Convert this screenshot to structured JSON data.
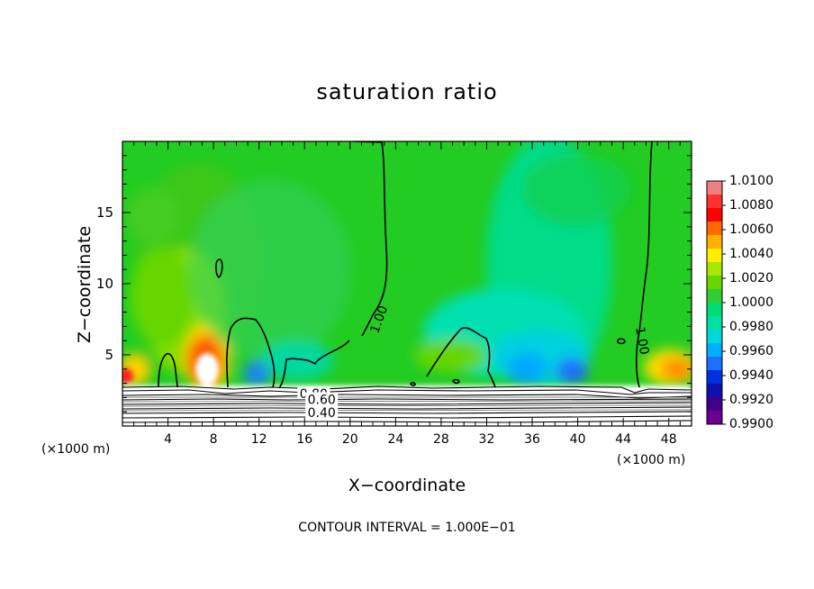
{
  "chart_data": {
    "type": "heatmap",
    "title": "saturation ratio",
    "xlabel": "X−coordinate",
    "ylabel": "Z−coordinate",
    "x_unit": "(×1000 m)",
    "z_unit": "(×1000 m)",
    "xlim": [
      0,
      50
    ],
    "zlim": [
      0,
      20
    ],
    "x_ticks": [
      "4",
      "8",
      "12",
      "16",
      "20",
      "24",
      "28",
      "32",
      "36",
      "40",
      "44",
      "48"
    ],
    "z_ticks": [
      "5",
      "10",
      "15"
    ],
    "colorbar": {
      "range": [
        0.99,
        1.01
      ],
      "labels": [
        "1.0100",
        "1.0080",
        "1.0060",
        "1.0040",
        "1.0020",
        "1.0000",
        "0.9980",
        "0.9960",
        "0.9940",
        "0.9920",
        "0.9900"
      ],
      "colors": [
        "#f08080",
        "#ff3030",
        "#ff0000",
        "#ff6a00",
        "#ffb000",
        "#ffee00",
        "#a6e600",
        "#66d600",
        "#33cc33",
        "#00dd77",
        "#00e0a0",
        "#00d8d8",
        "#00b0ff",
        "#1e70ff",
        "#0030e0",
        "#1010b0",
        "#40008a",
        "#6a0090"
      ]
    },
    "contour_labels": [
      {
        "text": "1.00",
        "x": 22.5,
        "z": 7.5
      },
      {
        "text": "1.00",
        "x": 45.7,
        "z": 6.0
      },
      {
        "text": "0.80",
        "x": 16.8,
        "z": 2.2
      },
      {
        "text": "0.60",
        "x": 17.5,
        "z": 1.8
      },
      {
        "text": "0.40",
        "x": 17.5,
        "z": 0.9
      }
    ],
    "annotation": "CONTOUR INTERVAL = 1.000E−01"
  }
}
